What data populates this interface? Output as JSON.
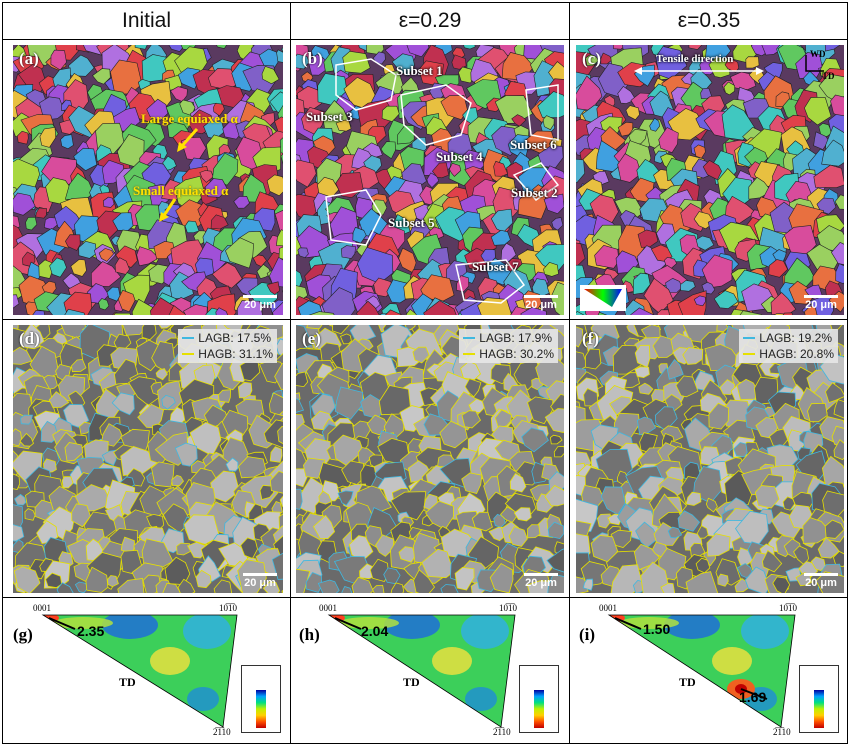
{
  "columns": [
    {
      "title": "Initial"
    },
    {
      "title": "ε=0.29"
    },
    {
      "title": "ε=0.35"
    }
  ],
  "ipf_maps": [
    {
      "label": "(a)",
      "scale": "20 μm",
      "annotations": [
        "Large equiaxed α",
        "Small equiaxed α"
      ]
    },
    {
      "label": "(b)",
      "scale": "20 μm",
      "subsets": [
        "Subset 1",
        "Subset 2",
        "Subset 3",
        "Subset 4",
        "Subset 5",
        "Subset 6",
        "Subset 7"
      ]
    },
    {
      "label": "(c)",
      "scale": "20 μm",
      "direction": "Tensile direction",
      "axis_wd": "WD",
      "axis_td": "TD"
    }
  ],
  "boundary_maps": [
    {
      "label": "(d)",
      "scale": "20 μm",
      "lagb": "LAGB: 17.5%",
      "hagb": "HAGB: 31.1%"
    },
    {
      "label": "(e)",
      "scale": "20 μm",
      "lagb": "LAGB: 17.9%",
      "hagb": "HAGB: 30.2%"
    },
    {
      "label": "(f)",
      "scale": "20 μm",
      "lagb": "LAGB: 19.2%",
      "hagb": "HAGB: 20.8%"
    }
  ],
  "pole_figures": [
    {
      "label": "(g)",
      "corner_tl": "0001",
      "corner_tr": "10̅1̅0",
      "corner_b": "2̅1̅10",
      "axis": "TD",
      "max1": "2.35",
      "max2": ""
    },
    {
      "label": "(h)",
      "corner_tl": "0001",
      "corner_tr": "10̅1̅0",
      "corner_b": "2̅1̅10",
      "axis": "TD",
      "max1": "2.04",
      "max2": ""
    },
    {
      "label": "(i)",
      "corner_tl": "0001",
      "corner_tr": "10̅1̅0",
      "corner_b": "2̅1̅10",
      "axis": "TD",
      "max1": "1.50",
      "max2": "1.69"
    }
  ],
  "colors": {
    "lagb": "#3fb8e0",
    "hagb": "#e6e000",
    "annotation_yellow": "#ffe100"
  }
}
